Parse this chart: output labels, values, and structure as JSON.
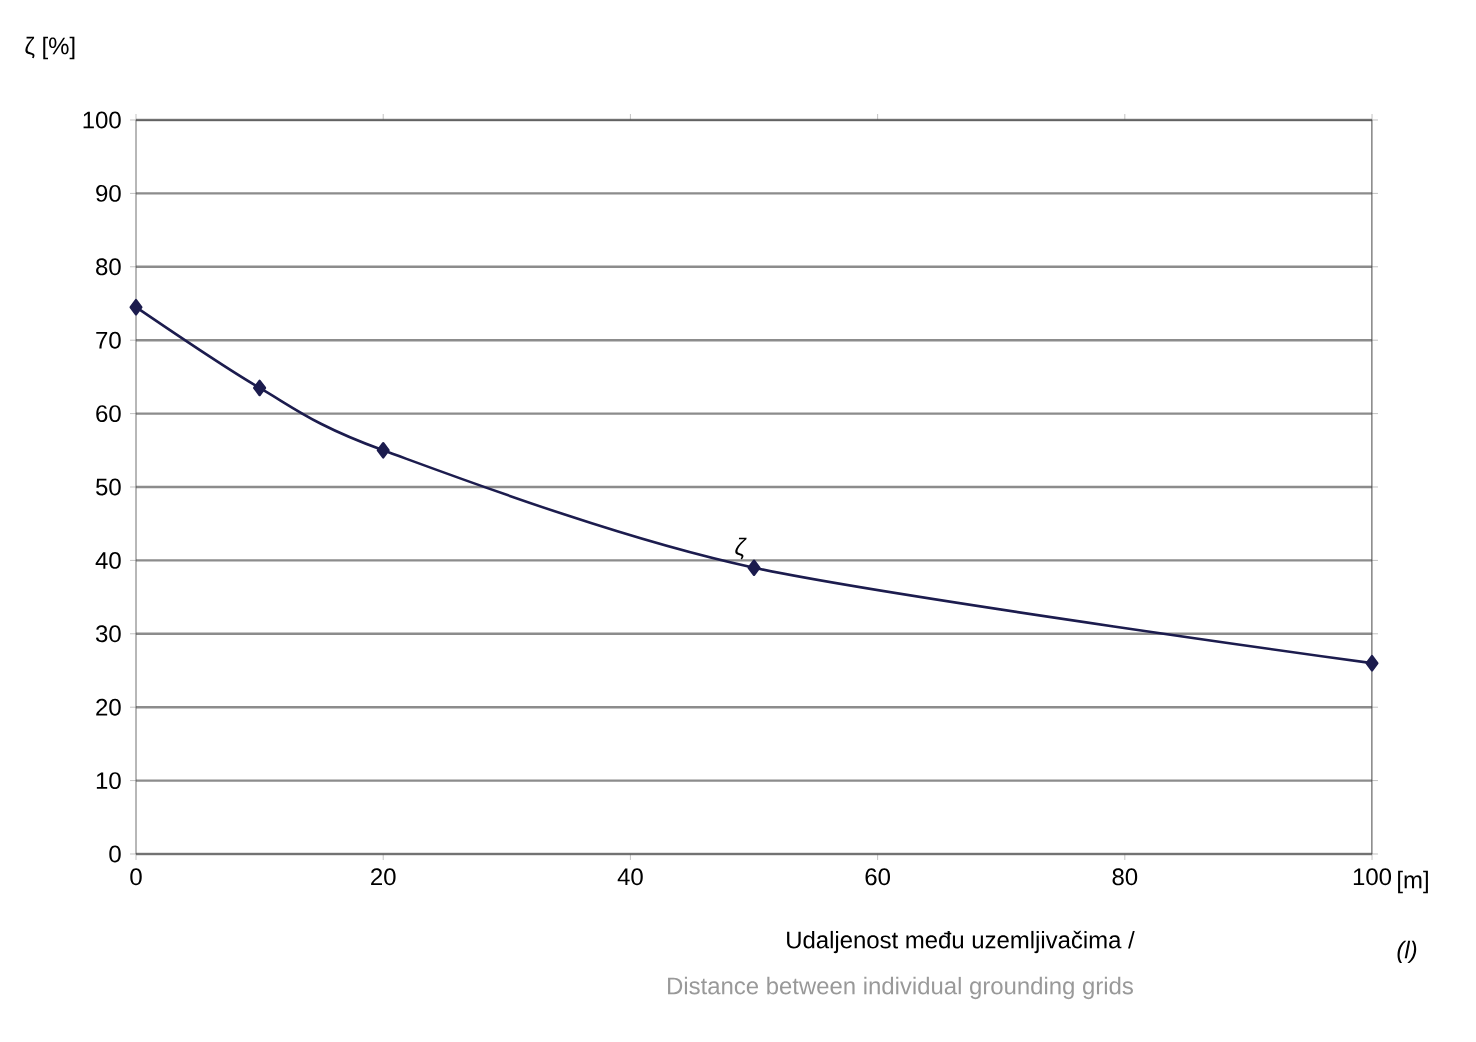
{
  "chart_data": {
    "type": "line",
    "ylabel": "ζ [%]",
    "xlabel": "Udaljenost među uzemljivačima /",
    "annotations": [
      "[m]",
      "(l)",
      "Distance between individual grounding grids"
    ],
    "x": [
      0,
      10,
      20,
      50,
      100
    ],
    "series": [
      {
        "name": "ζ",
        "color": "#1c1c4e",
        "values": [
          74.5,
          63.5,
          55,
          39,
          26
        ]
      }
    ],
    "xlim": [
      0,
      100
    ],
    "xticks": [
      0,
      20,
      40,
      60,
      80,
      100
    ],
    "ylim": [
      0,
      100
    ],
    "yticks": [
      0,
      10,
      20,
      30,
      40,
      50,
      60,
      70,
      80,
      90,
      100
    ],
    "grid": "y",
    "marker": "diamond",
    "line_style": "solid",
    "legend": false
  }
}
